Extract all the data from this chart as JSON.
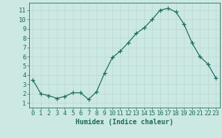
{
  "x": [
    0,
    1,
    2,
    3,
    4,
    5,
    6,
    7,
    8,
    9,
    10,
    11,
    12,
    13,
    14,
    15,
    16,
    17,
    18,
    19,
    20,
    21,
    22,
    23
  ],
  "y": [
    3.5,
    2.0,
    1.8,
    1.5,
    1.7,
    2.1,
    2.1,
    1.4,
    2.2,
    4.2,
    5.9,
    6.6,
    7.5,
    8.5,
    9.1,
    10.0,
    11.0,
    11.2,
    10.8,
    9.5,
    7.5,
    6.0,
    5.2,
    3.7
  ],
  "line_color": "#1a6b5a",
  "marker": "+",
  "marker_size": 4,
  "marker_color": "#1a6b5a",
  "bg_color": "#cce8e3",
  "grid_color": "#b8d8d3",
  "xlabel": "Humidex (Indice chaleur)",
  "xlim": [
    -0.5,
    23.5
  ],
  "ylim": [
    0.5,
    11.8
  ],
  "xticks": [
    0,
    1,
    2,
    3,
    4,
    5,
    6,
    7,
    8,
    9,
    10,
    11,
    12,
    13,
    14,
    15,
    16,
    17,
    18,
    19,
    20,
    21,
    22,
    23
  ],
  "yticks": [
    1,
    2,
    3,
    4,
    5,
    6,
    7,
    8,
    9,
    10,
    11
  ],
  "tick_color": "#1a6b5a",
  "xlabel_fontsize": 7,
  "tick_fontsize": 6.5
}
